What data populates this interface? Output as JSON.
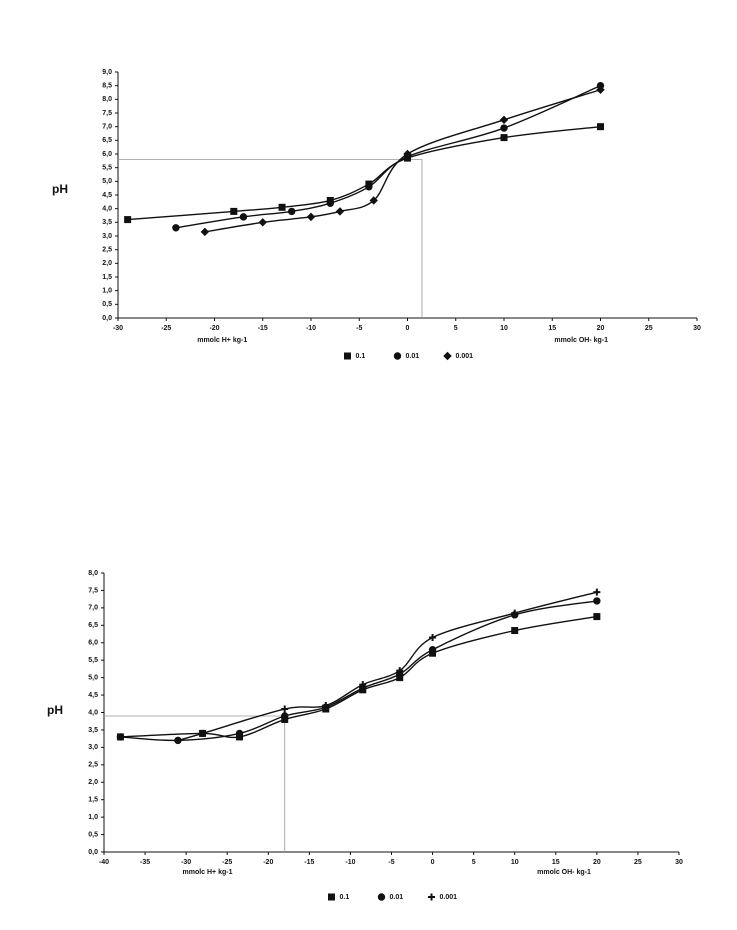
{
  "chart_data": [
    {
      "type": "scatter",
      "y_label": "pH",
      "x_label_left": "mmolc H+ kg-1",
      "x_label_right": "mmolc OH- kg-1",
      "xlim": [
        -30,
        30
      ],
      "xticks": [
        -30,
        -25,
        -20,
        -15,
        -10,
        -5,
        0,
        5,
        10,
        15,
        20,
        25,
        30
      ],
      "ylim": [
        0,
        9
      ],
      "yticks": [
        {
          "value": 0,
          "label": "0,0"
        },
        {
          "value": 0.5,
          "label": "0,5"
        },
        {
          "value": 1,
          "label": "1,0"
        },
        {
          "value": 1.5,
          "label": "1,5"
        },
        {
          "value": 2,
          "label": "2,0"
        },
        {
          "value": 2.5,
          "label": "2,5"
        },
        {
          "value": 3,
          "label": "3,0"
        },
        {
          "value": 3.5,
          "label": "3,5"
        },
        {
          "value": 4,
          "label": "4,0"
        },
        {
          "value": 4.5,
          "label": "4,5"
        },
        {
          "value": 5,
          "label": "5,0"
        },
        {
          "value": 5.5,
          "label": "5,5"
        },
        {
          "value": 6,
          "label": "6,0"
        },
        {
          "value": 6.5,
          "label": "6,5"
        },
        {
          "value": 7,
          "label": "7,0"
        },
        {
          "value": 7.5,
          "label": "7,5"
        },
        {
          "value": 8,
          "label": "8,0"
        },
        {
          "value": 8.5,
          "label": "8,5"
        },
        {
          "value": 9,
          "label": "9,0"
        }
      ],
      "reference": {
        "x": 1.5,
        "y": 5.8
      },
      "series": [
        {
          "name": "0.1",
          "color": "#111111",
          "marker": "square",
          "x": [
            -29,
            -18,
            -13,
            -8,
            -4,
            0,
            10,
            20
          ],
          "values": [
            3.6,
            3.9,
            4.05,
            4.3,
            4.9,
            5.85,
            6.6,
            7.0
          ]
        },
        {
          "name": "0.01",
          "color": "#111111",
          "marker": "circle",
          "x": [
            -24,
            -17,
            -12,
            -8,
            -4,
            0,
            10,
            20
          ],
          "values": [
            3.3,
            3.7,
            3.9,
            4.2,
            4.8,
            5.9,
            6.95,
            8.5
          ]
        },
        {
          "name": "0.001",
          "color": "#111111",
          "marker": "diamond",
          "x": [
            -21,
            -15,
            -10,
            -7,
            -3.5,
            0,
            10,
            20
          ],
          "values": [
            3.15,
            3.5,
            3.7,
            3.9,
            4.3,
            6.0,
            7.25,
            8.35
          ]
        }
      ]
    },
    {
      "type": "scatter",
      "y_label": "pH",
      "x_label_left": "mmolc H+ kg-1",
      "x_label_right": "mmolc OH- kg-1",
      "xlim": [
        -40,
        30
      ],
      "xticks": [
        -40,
        -35,
        -30,
        -25,
        -20,
        -15,
        -10,
        -5,
        0,
        5,
        10,
        15,
        20,
        25,
        30
      ],
      "ylim": [
        0,
        8
      ],
      "yticks": [
        {
          "value": 0,
          "label": "0,0"
        },
        {
          "value": 0.5,
          "label": "0,5"
        },
        {
          "value": 1,
          "label": "1,0"
        },
        {
          "value": 1.5,
          "label": "1,5"
        },
        {
          "value": 2,
          "label": "2,0"
        },
        {
          "value": 2.5,
          "label": "2,5"
        },
        {
          "value": 3,
          "label": "3,0"
        },
        {
          "value": 3.5,
          "label": "3,5"
        },
        {
          "value": 4,
          "label": "4,0"
        },
        {
          "value": 4.5,
          "label": "4,5"
        },
        {
          "value": 5,
          "label": "5,0"
        },
        {
          "value": 5.5,
          "label": "5,5"
        },
        {
          "value": 6,
          "label": "6,0"
        },
        {
          "value": 6.5,
          "label": "6,5"
        },
        {
          "value": 7,
          "label": "7,0"
        },
        {
          "value": 7.5,
          "label": "7,5"
        },
        {
          "value": 8,
          "label": "8,0"
        }
      ],
      "reference": {
        "x": -18,
        "y": 3.9
      },
      "series": [
        {
          "name": "0.1",
          "color": "#111111",
          "marker": "square",
          "x": [
            -38,
            -28,
            -23.5,
            -18,
            -13,
            -8.5,
            -4,
            0,
            10,
            20
          ],
          "values": [
            3.3,
            3.4,
            3.3,
            3.8,
            4.1,
            4.65,
            5.0,
            5.7,
            6.35,
            6.75
          ]
        },
        {
          "name": "0.01",
          "color": "#111111",
          "marker": "circle",
          "x": [
            -38,
            -31,
            -23.5,
            -18,
            -13,
            -8.5,
            -4,
            0,
            10,
            20
          ],
          "values": [
            3.3,
            3.2,
            3.4,
            3.9,
            4.15,
            4.7,
            5.1,
            5.8,
            6.8,
            7.2
          ]
        },
        {
          "name": "0.001",
          "color": "#111111",
          "marker": "plus",
          "x": [
            -31,
            -28,
            -18,
            -13,
            -8.5,
            -4,
            0,
            10,
            20
          ],
          "values": [
            3.2,
            3.4,
            4.1,
            4.2,
            4.8,
            5.2,
            6.15,
            6.85,
            7.45
          ]
        }
      ]
    }
  ]
}
